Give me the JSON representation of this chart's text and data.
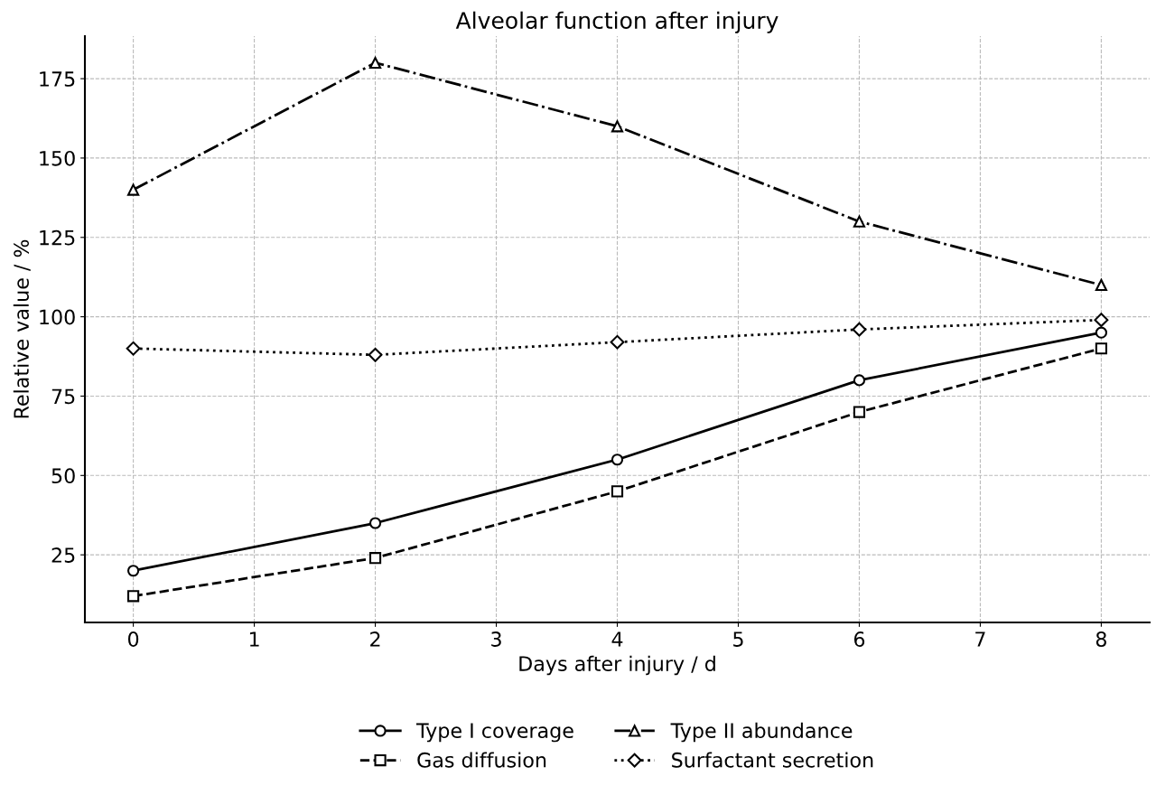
{
  "chart_data": {
    "type": "line",
    "title": "Alveolar function after injury",
    "xlabel": "Days after injury / d",
    "ylabel": "Relative value / %",
    "x": [
      0,
      2,
      4,
      6,
      8
    ],
    "series": [
      {
        "name": "Type I coverage",
        "color": "#000000",
        "marker": "circle",
        "line_style": "solid",
        "values": [
          20,
          35,
          55,
          80,
          95
        ]
      },
      {
        "name": "Gas diffusion",
        "color": "#000000",
        "marker": "square",
        "line_style": "dashed",
        "values": [
          12,
          24,
          45,
          70,
          90
        ]
      },
      {
        "name": "Type II abundance",
        "color": "#000000",
        "marker": "triangle",
        "line_style": "dashdot",
        "values": [
          140,
          180,
          160,
          130,
          110
        ]
      },
      {
        "name": "Surfactant secretion",
        "color": "#000000",
        "marker": "diamond",
        "line_style": "dotted",
        "values": [
          90,
          88,
          92,
          96,
          99
        ]
      }
    ],
    "xlim": [
      -0.4,
      8.4
    ],
    "xticks": [
      0,
      1,
      2,
      3,
      4,
      5,
      6,
      7,
      8
    ],
    "ylim": [
      3.7,
      188.4
    ],
    "yticks": [
      25,
      50,
      75,
      100,
      125,
      150,
      175
    ],
    "grid": true,
    "legend": "bottom"
  }
}
